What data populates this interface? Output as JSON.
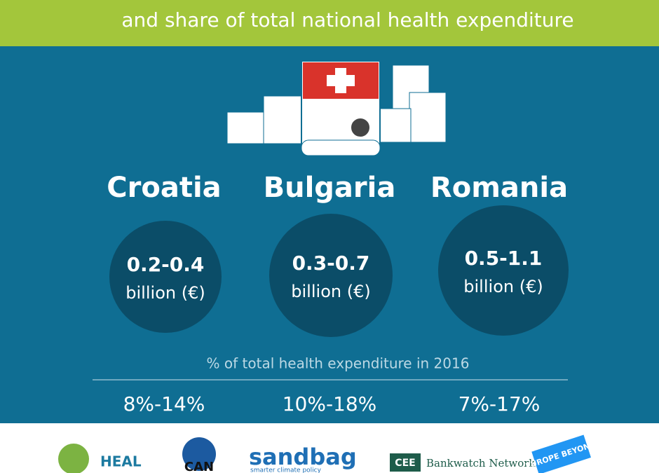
{
  "header": {
    "title": "and share of total national health expenditure"
  },
  "countries": [
    {
      "name": "Croatia",
      "cost": "0.2-0.4",
      "unit": "billion (€)",
      "share": "8%-14%"
    },
    {
      "name": "Bulgaria",
      "cost": "0.3-0.7",
      "unit": "billion (€)",
      "share": "10%-18%"
    },
    {
      "name": "Romania",
      "cost": "0.5-1.1",
      "unit": "billion (€)",
      "share": "7%-17%"
    }
  ],
  "share_caption": "% of total health expenditure in 2016",
  "logos": [
    "HEAL",
    "CAN",
    "sandbag",
    "smarter climate policy",
    "CEE",
    "Bankwatch Network",
    "EUROPE BEYOND"
  ]
}
